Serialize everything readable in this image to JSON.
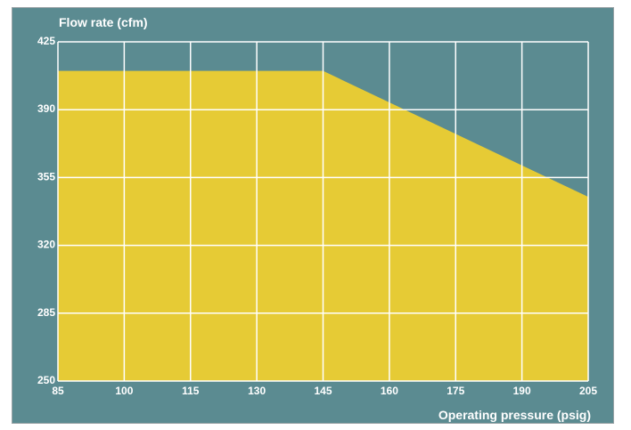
{
  "colors": {
    "panel_bg": "#5b8b91",
    "area_fill": "#e6cb35",
    "grid": "#ffffff",
    "text": "#ffffff"
  },
  "chart_data": {
    "type": "area",
    "ylabel": "Flow rate (cfm)",
    "xlabel": "Operating pressure (psig)",
    "x_ticks": [
      85,
      100,
      115,
      130,
      145,
      160,
      175,
      190,
      205
    ],
    "y_ticks": [
      250,
      285,
      320,
      355,
      390,
      425
    ],
    "xlim": [
      85,
      205
    ],
    "ylim": [
      250,
      425
    ],
    "grid": true,
    "x": [
      85,
      145,
      205
    ],
    "y": [
      410,
      410,
      345
    ]
  }
}
